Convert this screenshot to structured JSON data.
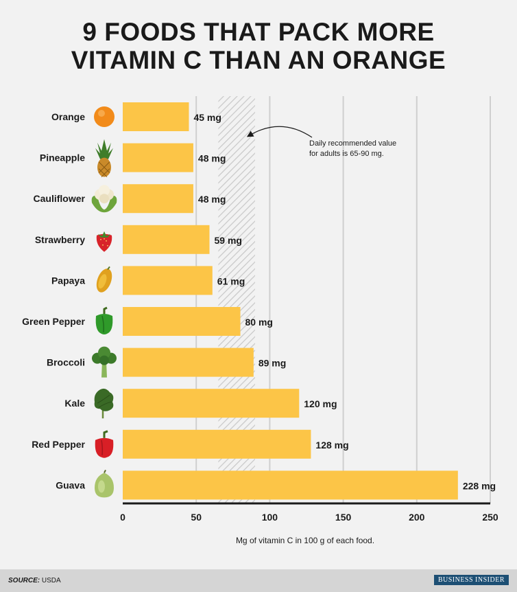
{
  "title_line1": "9 FOODS THAT PACK MORE",
  "title_line2": "VITAMIN C THAN AN ORANGE",
  "chart_data": {
    "type": "bar",
    "orientation": "horizontal",
    "categories": [
      "Orange",
      "Pineapple",
      "Cauliflower",
      "Strawberry",
      "Papaya",
      "Green Pepper",
      "Broccoli",
      "Kale",
      "Red Pepper",
      "Guava"
    ],
    "values": [
      45,
      48,
      48,
      59,
      61,
      80,
      89,
      120,
      128,
      228
    ],
    "value_labels": [
      "45 mg",
      "48 mg",
      "48 mg",
      "59 mg",
      "61 mg",
      "80 mg",
      "89 mg",
      "120 mg",
      "128 mg",
      "228 mg"
    ],
    "xlabel": "Mg of vitamin C in 100 g of each food.",
    "xlim": [
      0,
      250
    ],
    "xticks": [
      0,
      50,
      100,
      150,
      200,
      250
    ],
    "grid": true,
    "recommended_band": [
      65,
      90
    ],
    "annotation_line1": "Daily recommended value",
    "annotation_line2": "for adults is 65-90 mg.",
    "colors": {
      "bar": "#fcc547",
      "grid": "#cfcfcf",
      "axis": "#1a1a1a",
      "hatch": "#c9c9c9"
    },
    "icons": [
      "orange-icon",
      "pineapple-icon",
      "cauliflower-icon",
      "strawberry-icon",
      "papaya-icon",
      "green-pepper-icon",
      "broccoli-icon",
      "kale-icon",
      "red-pepper-icon",
      "guava-icon"
    ]
  },
  "footer": {
    "source_label": "SOURCE:",
    "source_value": "USDA",
    "brand": "BUSINESS INSIDER"
  }
}
